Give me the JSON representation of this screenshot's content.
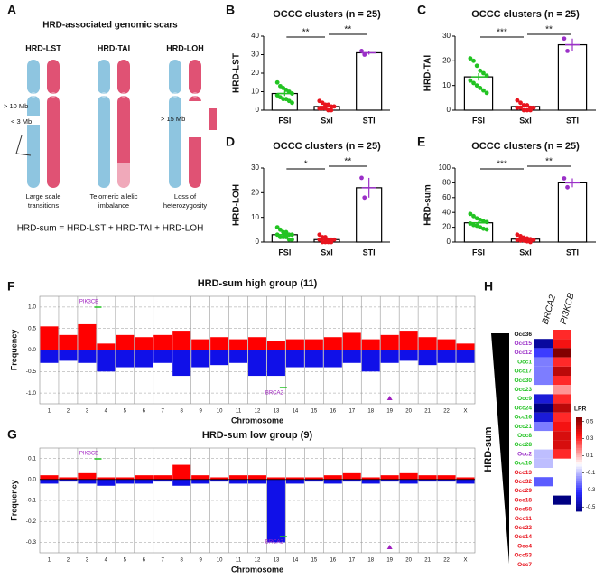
{
  "panel_labels": [
    "A",
    "B",
    "C",
    "D",
    "E",
    "F",
    "G",
    "H"
  ],
  "diagram": {
    "title": "HRD-associated genomic scars",
    "columns": [
      {
        "label": "HRD-LST",
        "notes": [
          "> 10 Mb",
          "< 3 Mb"
        ],
        "caption": [
          "Large scale",
          "transitions"
        ]
      },
      {
        "label": "HRD-TAI",
        "notes": [],
        "caption": [
          "Telomeric allelic",
          "imbalance"
        ]
      },
      {
        "label": "HRD-LOH",
        "notes": [
          "> 15 Mb"
        ],
        "caption": [
          "Loss of",
          "heterozygosity"
        ]
      }
    ],
    "formula": "HRD-sum = HRD-LST + HRD-TAI + HRD-LOH"
  },
  "chart_data": [
    {
      "type": "dot",
      "title": "OCCC clusters (n = 25)",
      "ylabel": "HRD-LST",
      "categories": [
        "FSI",
        "SxI",
        "STI"
      ],
      "colors": [
        "#22c322",
        "#e8141e",
        "#9b30c8"
      ],
      "values": [
        9,
        2,
        31
      ],
      "errors": [
        1.3,
        0.5,
        1
      ],
      "points": [
        [
          15,
          13,
          12,
          11,
          10,
          9,
          8,
          7,
          6,
          6,
          5,
          4
        ],
        [
          5,
          4,
          3,
          3,
          2,
          2,
          1,
          1,
          1,
          0,
          0
        ],
        [
          32,
          30
        ]
      ],
      "ylim": [
        0,
        40
      ],
      "yticks": [
        0,
        10,
        20,
        30,
        40
      ],
      "annotations": [
        "**",
        "**"
      ]
    },
    {
      "type": "dot",
      "title": "OCCC clusters (n = 25)",
      "ylabel": "HRD-TAI",
      "categories": [
        "FSI",
        "SxI",
        "STI"
      ],
      "colors": [
        "#22c322",
        "#e8141e",
        "#9b30c8"
      ],
      "values": [
        13.5,
        1.5,
        26.5
      ],
      "errors": [
        1.5,
        0.4,
        2.5
      ],
      "points": [
        [
          21,
          20,
          18,
          16,
          15,
          14,
          12,
          11,
          10,
          9,
          8,
          7
        ],
        [
          4,
          3,
          2,
          2,
          1,
          1,
          1,
          1,
          0,
          0,
          0
        ],
        [
          29,
          24
        ]
      ],
      "ylim": [
        0,
        30
      ],
      "yticks": [
        0,
        10,
        20,
        30
      ],
      "annotations": [
        "***",
        "**"
      ]
    },
    {
      "type": "dot",
      "title": "OCCC clusters (n = 25)",
      "ylabel": "HRD-LOH",
      "categories": [
        "FSI",
        "SxI",
        "STI"
      ],
      "colors": [
        "#22c322",
        "#e8141e",
        "#9b30c8"
      ],
      "values": [
        3,
        1,
        22
      ],
      "errors": [
        0.5,
        0.3,
        4
      ],
      "points": [
        [
          6,
          5,
          4,
          4,
          3,
          3,
          3,
          2,
          2,
          2,
          1,
          1
        ],
        [
          3,
          2,
          2,
          1,
          1,
          1,
          1,
          0,
          0,
          0,
          0
        ],
        [
          26,
          18
        ]
      ],
      "ylim": [
        0,
        30
      ],
      "yticks": [
        0,
        10,
        20,
        30
      ],
      "annotations": [
        "*",
        "**"
      ]
    },
    {
      "type": "dot",
      "title": "OCCC clusters (n = 25)",
      "ylabel": "HRD-sum",
      "categories": [
        "FSI",
        "SxI",
        "STI"
      ],
      "colors": [
        "#22c322",
        "#e8141e",
        "#9b30c8"
      ],
      "values": [
        26,
        4,
        80
      ],
      "errors": [
        2,
        1,
        6
      ],
      "points": [
        [
          38,
          35,
          32,
          30,
          28,
          27,
          25,
          23,
          22,
          20,
          18,
          17
        ],
        [
          10,
          8,
          6,
          5,
          4,
          3,
          3,
          2,
          2,
          1,
          0
        ],
        [
          86,
          74
        ]
      ],
      "ylim": [
        0,
        100
      ],
      "yticks": [
        0,
        20,
        40,
        60,
        80,
        100
      ],
      "annotations": [
        "***",
        "**"
      ]
    },
    {
      "type": "frequency",
      "title": "HRD-sum high group (11)",
      "xlabel": "Chromosome",
      "ylabel": "Frequency",
      "categories": [
        "1",
        "2",
        "3",
        "4",
        "5",
        "6",
        "7",
        "8",
        "9",
        "10",
        "11",
        "12",
        "13",
        "14",
        "15",
        "16",
        "17",
        "18",
        "19",
        "20",
        "21",
        "22",
        "X"
      ],
      "series": [
        {
          "color": "#ff0000",
          "values": [
            0.55,
            0.35,
            0.6,
            0.15,
            0.35,
            0.3,
            0.35,
            0.45,
            0.25,
            0.3,
            0.25,
            0.3,
            0.2,
            0.25,
            0.25,
            0.3,
            0.4,
            0.25,
            0.35,
            0.45,
            0.3,
            0.25,
            0.15
          ]
        },
        {
          "color": "#1010e8",
          "values": [
            -0.3,
            -0.25,
            -0.3,
            -0.5,
            -0.4,
            -0.4,
            -0.3,
            -0.6,
            -0.4,
            -0.35,
            -0.3,
            -0.6,
            -0.6,
            -0.4,
            -0.4,
            -0.4,
            -0.3,
            -0.5,
            -0.3,
            -0.25,
            -0.35,
            -0.3,
            -0.3
          ]
        }
      ],
      "ylim": [
        -1.25,
        1.25
      ],
      "yticks": [
        {
          "value": 1,
          "label": "1.0"
        },
        0.5,
        {
          "value": 0,
          "label": "0.0"
        },
        -0.5,
        {
          "value": -1,
          "label": "-1.0"
        }
      ],
      "annotations": [
        "PIK3CB",
        "BRCA2"
      ]
    },
    {
      "type": "frequency",
      "title": "HRD-sum low group (9)",
      "xlabel": "Chromosome",
      "ylabel": "Frequency",
      "categories": [
        "1",
        "2",
        "3",
        "4",
        "5",
        "6",
        "7",
        "8",
        "9",
        "10",
        "11",
        "12",
        "13",
        "14",
        "15",
        "16",
        "17",
        "18",
        "19",
        "20",
        "21",
        "22",
        "X"
      ],
      "series": [
        {
          "color": "#ff0000",
          "values": [
            0.02,
            0.01,
            0.03,
            0.01,
            0.01,
            0.02,
            0.02,
            0.07,
            0.02,
            0.01,
            0.02,
            0.02,
            0.01,
            0.01,
            0.01,
            0.02,
            0.03,
            0.01,
            0.02,
            0.03,
            0.02,
            0.02,
            0.01
          ]
        },
        {
          "color": "#1010e8",
          "values": [
            -0.02,
            -0.01,
            -0.02,
            -0.03,
            -0.02,
            -0.02,
            -0.01,
            -0.03,
            -0.02,
            -0.01,
            -0.02,
            -0.02,
            -0.3,
            -0.02,
            -0.01,
            -0.02,
            -0.01,
            -0.02,
            -0.01,
            -0.02,
            -0.01,
            -0.01,
            -0.02
          ]
        }
      ],
      "ylim": [
        -0.35,
        0.15
      ],
      "yticks": [
        0.1,
        {
          "value": 0,
          "label": "0.0"
        },
        -0.1,
        -0.2,
        -0.3
      ],
      "annotations": [
        "PIK3CB",
        "BRCA2"
      ]
    },
    {
      "type": "heatmap",
      "ylabel": "HRD-sum",
      "columns": [
        "BRCA2",
        "PI3KCB"
      ],
      "rows": [
        "Occ36",
        "Occ15",
        "Occ12",
        "Occ1",
        "Occ17",
        "Occ30",
        "Occ23",
        "Occ9",
        "Occ24",
        "Occ16",
        "Occ21",
        "Occ8",
        "Occ28",
        "Occ2",
        "Occ10",
        "Occ13",
        "Occ32",
        "Occ29",
        "Occ18",
        "Occ58",
        "Occ11",
        "Occ22",
        "Occ14",
        "Occ4",
        "Occ53",
        "Occ7"
      ],
      "row_colors": [
        "#111111",
        "#9b30c8",
        "#9b30c8",
        "#22c322",
        "#22c322",
        "#22c322",
        "#22c322",
        "#22c322",
        "#22c322",
        "#22c322",
        "#22c322",
        "#22c322",
        "#22c322",
        "#9b30c8",
        "#22c322",
        "#e8141e",
        "#e8141e",
        "#e8141e",
        "#e8141e",
        "#e8141e",
        "#e8141e",
        "#e8141e",
        "#e8141e",
        "#e8141e",
        "#e8141e",
        "#e8141e"
      ],
      "values": [
        [
          0,
          0.3
        ],
        [
          -0.5,
          0.35
        ],
        [
          -0.3,
          0.55
        ],
        [
          -0.2,
          0.3
        ],
        [
          -0.2,
          0.45
        ],
        [
          -0.2,
          0.3
        ],
        [
          0,
          0.15
        ],
        [
          -0.4,
          0.3
        ],
        [
          -0.55,
          0.45
        ],
        [
          -0.4,
          0.3
        ],
        [
          -0.2,
          0.35
        ],
        [
          0,
          0.4
        ],
        [
          0,
          0.4
        ],
        [
          -0.1,
          0.3
        ],
        [
          -0.1,
          0
        ],
        [
          0,
          0
        ],
        [
          -0.25,
          0
        ],
        [
          0,
          0
        ],
        [
          0,
          -0.55
        ],
        [
          0,
          0
        ],
        [
          0,
          0
        ],
        [
          0,
          0
        ],
        [
          0,
          0
        ],
        [
          0,
          0
        ],
        [
          0,
          0
        ],
        [
          0,
          0
        ]
      ],
      "clim": [
        -0.55,
        0.55
      ],
      "colorbar_label": "LRR",
      "colorbar_ticks": [
        0.5,
        0.3,
        0.1,
        -0.1,
        -0.3,
        -0.5
      ]
    }
  ]
}
